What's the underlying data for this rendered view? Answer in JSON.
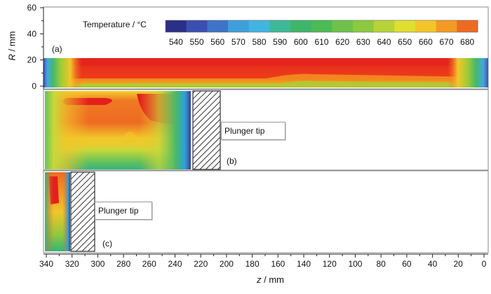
{
  "chart_data": {
    "type": "heatmap",
    "colorbar": {
      "title": "Temperature / °C",
      "ticks": [
        540,
        550,
        560,
        570,
        580,
        590,
        600,
        610,
        620,
        630,
        640,
        650,
        660,
        670,
        680
      ],
      "range": [
        535,
        685
      ]
    },
    "xaxis": {
      "var": "z",
      "unit": "/ mm",
      "ticks": [
        340,
        320,
        300,
        280,
        260,
        240,
        220,
        200,
        180,
        160,
        140,
        120,
        100,
        80,
        60,
        40,
        20,
        0
      ],
      "range": [
        340,
        0
      ],
      "reversed": true
    },
    "yaxis": {
      "var": "R",
      "unit": "/ mm",
      "ticks": [
        0,
        20,
        40,
        60
      ],
      "range": [
        0,
        60
      ]
    },
    "panels": [
      {
        "tag": "(a)",
        "z_extent": [
          340,
          0
        ],
        "r_extent": [
          0,
          20
        ]
      },
      {
        "tag": "(b)",
        "z_extent": [
          340,
          230
        ],
        "plunger_label": "Plunger tip",
        "plunger_extent": [
          227,
          206
        ]
      },
      {
        "tag": "(c)",
        "z_extent": [
          340,
          323
        ],
        "plunger_label": "Plunger tip",
        "plunger_extent": [
          321,
          303
        ]
      }
    ]
  }
}
